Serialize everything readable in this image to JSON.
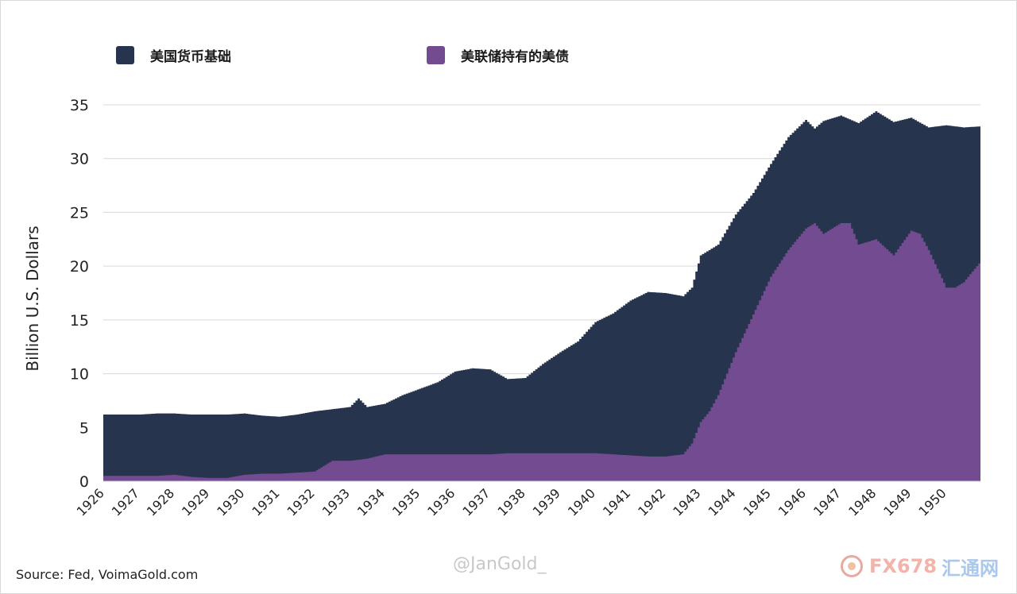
{
  "legend": {
    "series1": {
      "label": "美国货币基础",
      "color": "#27344d"
    },
    "series2": {
      "label": "美联储持有的美债",
      "color": "#734b90"
    }
  },
  "source": "Source: Fed, VoimaGold.com",
  "watermark": "@JanGold_",
  "logo": {
    "text": "FX678",
    "text_cn": "汇通网"
  },
  "chart_data": {
    "type": "area",
    "title": "",
    "ylabel": "Billion U.S. Dollars",
    "xlabel": "",
    "ylim": [
      0,
      35
    ],
    "yticks": [
      0,
      5,
      10,
      15,
      20,
      25,
      30,
      35
    ],
    "xlim": [
      1926,
      1951
    ],
    "xticks": [
      1926,
      1927,
      1928,
      1929,
      1930,
      1931,
      1932,
      1933,
      1934,
      1935,
      1936,
      1937,
      1938,
      1939,
      1940,
      1941,
      1942,
      1943,
      1944,
      1945,
      1946,
      1947,
      1948,
      1949,
      1950
    ],
    "grid": true,
    "legend_position": "top",
    "series": [
      {
        "name": "美国货币基础",
        "color": "#27344d",
        "x": [
          1926.0,
          1926.5,
          1927.0,
          1927.5,
          1928.0,
          1928.5,
          1929.0,
          1929.5,
          1930.0,
          1930.5,
          1931.0,
          1931.5,
          1932.0,
          1932.5,
          1933.0,
          1933.25,
          1933.5,
          1934.0,
          1934.5,
          1935.0,
          1935.5,
          1936.0,
          1936.5,
          1937.0,
          1937.5,
          1938.0,
          1938.5,
          1939.0,
          1939.5,
          1940.0,
          1940.5,
          1941.0,
          1941.5,
          1942.0,
          1942.5,
          1942.75,
          1943.0,
          1943.5,
          1944.0,
          1944.5,
          1945.0,
          1945.5,
          1946.0,
          1946.25,
          1946.5,
          1947.0,
          1947.5,
          1948.0,
          1948.5,
          1949.0,
          1949.5,
          1950.0,
          1950.5,
          1951.0
        ],
        "values": [
          6.2,
          6.2,
          6.2,
          6.3,
          6.3,
          6.2,
          6.2,
          6.2,
          6.3,
          6.1,
          6.0,
          6.2,
          6.5,
          6.7,
          6.9,
          7.7,
          6.9,
          7.2,
          8.0,
          8.6,
          9.2,
          10.2,
          10.5,
          10.4,
          9.5,
          9.6,
          10.9,
          12.0,
          13.0,
          14.8,
          15.6,
          16.8,
          17.6,
          17.5,
          17.2,
          18.0,
          21.0,
          22.0,
          24.8,
          26.8,
          29.5,
          32.0,
          33.6,
          32.8,
          33.5,
          34.0,
          33.3,
          34.4,
          33.4,
          33.8,
          32.9,
          33.1,
          32.9,
          33.0
        ]
      },
      {
        "name": "美联储持有的美债",
        "color": "#734b90",
        "x": [
          1926.0,
          1926.5,
          1927.0,
          1927.5,
          1928.0,
          1928.5,
          1929.0,
          1929.5,
          1930.0,
          1930.5,
          1931.0,
          1931.5,
          1932.0,
          1932.5,
          1933.0,
          1933.5,
          1934.0,
          1934.5,
          1935.0,
          1935.5,
          1936.0,
          1936.5,
          1937.0,
          1937.5,
          1938.0,
          1938.5,
          1939.0,
          1939.5,
          1940.0,
          1940.5,
          1941.0,
          1941.5,
          1942.0,
          1942.5,
          1942.75,
          1943.0,
          1943.25,
          1943.5,
          1944.0,
          1944.5,
          1945.0,
          1945.5,
          1946.0,
          1946.25,
          1946.5,
          1947.0,
          1947.25,
          1947.5,
          1948.0,
          1948.5,
          1949.0,
          1949.25,
          1949.5,
          1950.0,
          1950.25,
          1950.5,
          1951.0
        ],
        "values": [
          0.5,
          0.5,
          0.5,
          0.5,
          0.6,
          0.4,
          0.3,
          0.3,
          0.6,
          0.7,
          0.7,
          0.8,
          0.9,
          1.9,
          1.9,
          2.1,
          2.5,
          2.5,
          2.5,
          2.5,
          2.5,
          2.5,
          2.5,
          2.6,
          2.6,
          2.6,
          2.6,
          2.6,
          2.6,
          2.5,
          2.4,
          2.3,
          2.3,
          2.5,
          3.5,
          5.5,
          6.5,
          8.0,
          12.0,
          15.5,
          19.0,
          21.5,
          23.5,
          24.0,
          23.0,
          24.0,
          24.0,
          22.0,
          22.5,
          21.0,
          23.3,
          23.0,
          21.5,
          18.0,
          18.0,
          18.5,
          20.5
        ]
      }
    ]
  }
}
